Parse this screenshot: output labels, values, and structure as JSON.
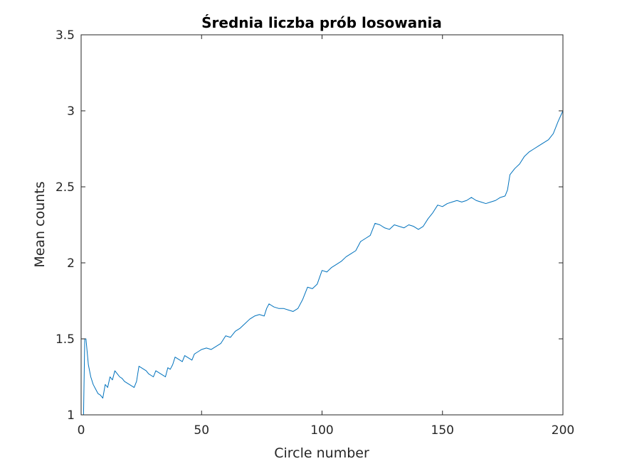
{
  "chart_data": {
    "type": "line",
    "title": "Średnia liczba prób losowania",
    "xlabel": "Circle number",
    "ylabel": "Mean counts",
    "xlim": [
      0,
      200
    ],
    "ylim": [
      1,
      3.5
    ],
    "xticks": [
      "0",
      "50",
      "100",
      "150",
      "200"
    ],
    "yticks": [
      "1",
      "1.5",
      "2",
      "2.5",
      "3",
      "3.5"
    ],
    "grid": false,
    "legend": "none",
    "line_color": "#0072bd",
    "axes_color": "#262626",
    "series": [
      {
        "x": [
          1,
          1.5,
          2,
          3,
          4,
          5,
          6,
          7,
          8,
          9,
          10,
          11,
          12,
          13,
          14,
          15,
          16,
          17,
          18,
          19,
          20,
          21,
          22,
          23,
          24,
          25,
          26,
          27,
          28,
          29,
          30,
          31,
          32,
          33,
          34,
          35,
          36,
          37,
          38,
          39,
          40,
          41,
          42,
          43,
          44,
          45,
          46,
          47,
          48,
          49,
          50,
          52,
          54,
          56,
          58,
          60,
          62,
          64,
          66,
          68,
          70,
          72,
          74,
          76,
          77,
          78,
          80,
          82,
          84,
          86,
          88,
          90,
          92,
          94,
          96,
          98,
          100,
          102,
          104,
          106,
          108,
          110,
          112,
          114,
          116,
          118,
          120,
          122,
          124,
          126,
          128,
          130,
          132,
          134,
          136,
          138,
          140,
          142,
          144,
          146,
          148,
          150,
          152,
          154,
          156,
          158,
          160,
          162,
          164,
          166,
          168,
          170,
          172,
          174,
          176,
          177,
          178,
          180,
          182,
          184,
          186,
          188,
          190,
          192,
          194,
          196,
          198,
          200
        ],
        "y": [
          1.0,
          1.5,
          1.5,
          1.33,
          1.25,
          1.2,
          1.17,
          1.14,
          1.13,
          1.11,
          1.2,
          1.18,
          1.25,
          1.23,
          1.29,
          1.27,
          1.25,
          1.24,
          1.22,
          1.21,
          1.2,
          1.19,
          1.18,
          1.22,
          1.32,
          1.31,
          1.3,
          1.29,
          1.27,
          1.26,
          1.25,
          1.29,
          1.28,
          1.27,
          1.26,
          1.25,
          1.31,
          1.3,
          1.33,
          1.38,
          1.37,
          1.36,
          1.35,
          1.39,
          1.38,
          1.37,
          1.36,
          1.4,
          1.41,
          1.42,
          1.43,
          1.44,
          1.43,
          1.45,
          1.47,
          1.52,
          1.51,
          1.55,
          1.57,
          1.6,
          1.63,
          1.65,
          1.66,
          1.65,
          1.7,
          1.73,
          1.71,
          1.7,
          1.7,
          1.69,
          1.68,
          1.7,
          1.76,
          1.84,
          1.83,
          1.86,
          1.95,
          1.94,
          1.97,
          1.99,
          2.01,
          2.04,
          2.06,
          2.08,
          2.14,
          2.16,
          2.18,
          2.26,
          2.25,
          2.23,
          2.22,
          2.25,
          2.24,
          2.23,
          2.25,
          2.24,
          2.22,
          2.24,
          2.29,
          2.33,
          2.38,
          2.37,
          2.39,
          2.4,
          2.41,
          2.4,
          2.41,
          2.43,
          2.41,
          2.4,
          2.39,
          2.4,
          2.41,
          2.43,
          2.44,
          2.48,
          2.58,
          2.62,
          2.65,
          2.7,
          2.73,
          2.75,
          2.77,
          2.79,
          2.81,
          2.85,
          2.93,
          3.0
        ]
      }
    ]
  }
}
